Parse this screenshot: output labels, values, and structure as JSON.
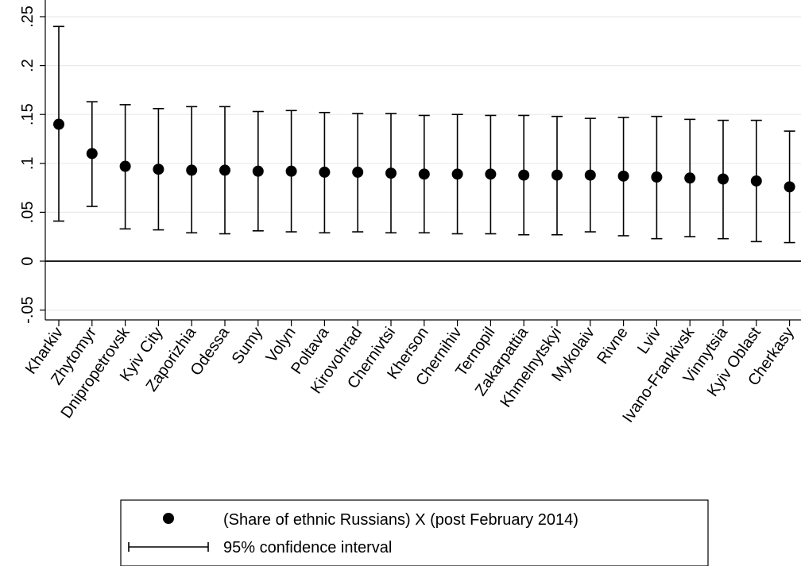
{
  "chart_data": {
    "type": "scatter",
    "subtype": "point-estimate-with-95ci",
    "title": "",
    "xlabel": "",
    "ylabel": "",
    "ylim": [
      -0.065,
      0.26
    ],
    "yticks": [
      -0.05,
      0,
      0.05,
      0.1,
      0.15,
      0.2,
      0.25
    ],
    "ytick_labels": [
      "-.05",
      "0",
      ".05",
      ".1",
      ".15",
      ".2",
      ".25"
    ],
    "reference_line_y": 0,
    "grid": "horizontal",
    "legend_position": "bottom",
    "categories": [
      "Kharkiv",
      "Zhytomyr",
      "Dnipropetrovsk",
      "Kyiv City",
      "Zaporizhia",
      "Odessa",
      "Sumy",
      "Volyn",
      "Poltava",
      "Kirovohrad",
      "Chernivtsi",
      "Kherson",
      "Chernihiv",
      "Ternopil",
      "Zakarpattia",
      "Khmelnytskyi",
      "Mykolaiv",
      "Rivne",
      "Lviv",
      "Ivano-Frankivsk",
      "Vinnytsia",
      "Kyiv Oblast",
      "Cherkasy"
    ],
    "series": [
      {
        "name": "(Share of ethnic Russians) X (post February 2014)",
        "values": [
          0.14,
          0.11,
          0.097,
          0.094,
          0.093,
          0.093,
          0.092,
          0.092,
          0.091,
          0.091,
          0.09,
          0.089,
          0.089,
          0.089,
          0.088,
          0.088,
          0.088,
          0.087,
          0.086,
          0.085,
          0.084,
          0.082,
          0.076
        ],
        "ci_low": [
          0.041,
          0.056,
          0.033,
          0.032,
          0.029,
          0.028,
          0.031,
          0.03,
          0.029,
          0.03,
          0.029,
          0.029,
          0.028,
          0.028,
          0.027,
          0.027,
          0.03,
          0.026,
          0.023,
          0.025,
          0.023,
          0.02,
          0.019
        ],
        "ci_high": [
          0.24,
          0.163,
          0.16,
          0.156,
          0.158,
          0.158,
          0.153,
          0.154,
          0.152,
          0.151,
          0.151,
          0.149,
          0.15,
          0.149,
          0.149,
          0.148,
          0.146,
          0.147,
          0.148,
          0.145,
          0.144,
          0.144,
          0.133
        ]
      }
    ],
    "legend": {
      "point_label": "(Share of ethnic Russians) X (post February 2014)",
      "ci_label": "95% confidence interval"
    }
  }
}
